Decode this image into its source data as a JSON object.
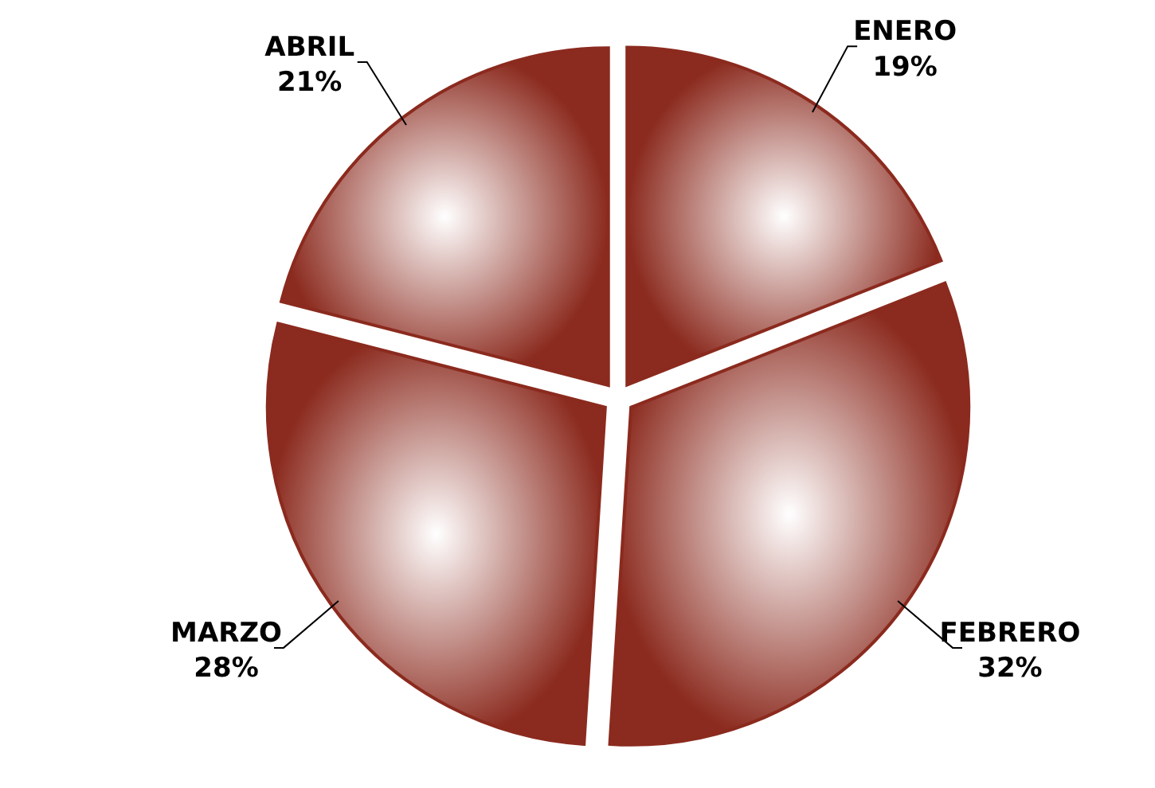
{
  "chart_data": {
    "type": "pie",
    "categories": [
      "ENERO",
      "FEBRERO",
      "MARZO",
      "ABRIL"
    ],
    "values": [
      19,
      32,
      28,
      21
    ],
    "value_labels": [
      "19%",
      "32%",
      "28%",
      "21%"
    ],
    "colors": [
      "#8b2a1e",
      "#8b2a1e",
      "#8b2a1e",
      "#8b2a1e"
    ]
  }
}
